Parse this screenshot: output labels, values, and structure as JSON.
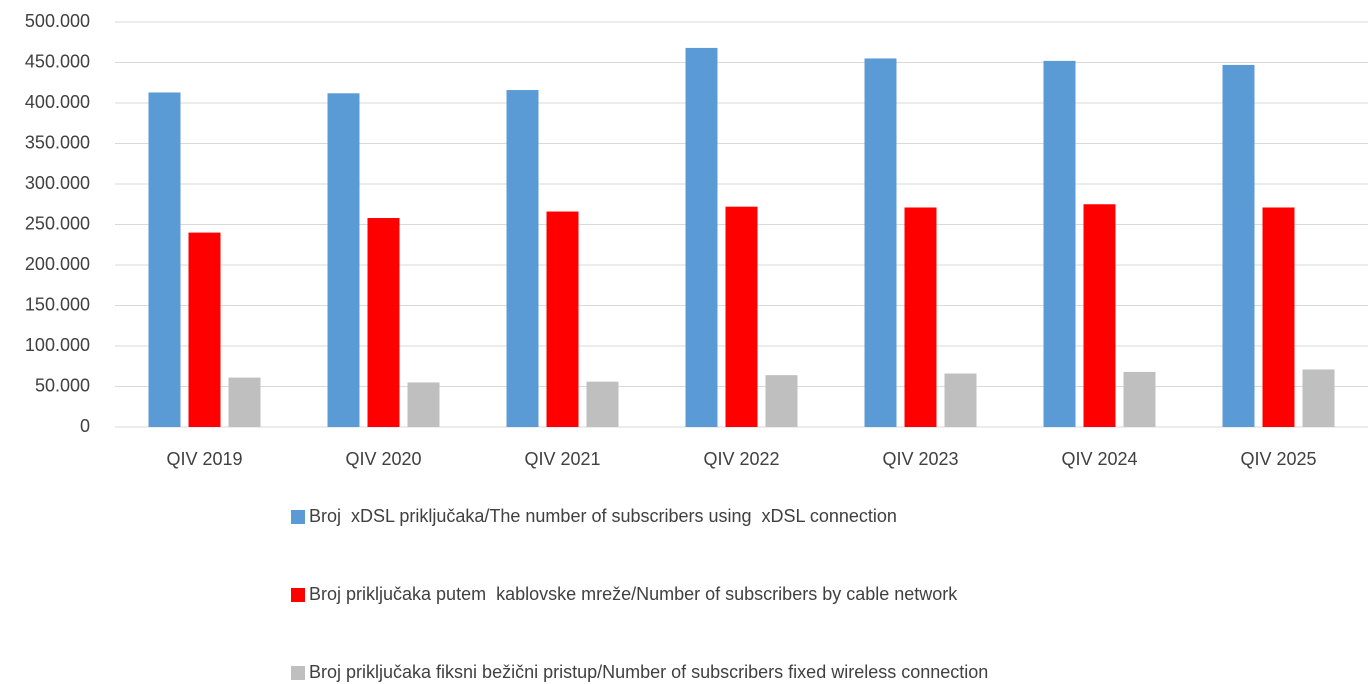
{
  "chart_data": {
    "type": "bar",
    "categories": [
      "QIV 2019",
      "QIV 2020",
      "QIV 2021",
      "QIV 2022",
      "QIV 2023",
      "QIV 2024",
      "QIV 2025"
    ],
    "series": [
      {
        "name": "Broj  xDSL priključaka/The number of subscribers using  xDSL connection",
        "color": "#5b9bd5",
        "values": [
          413000,
          412000,
          416000,
          468000,
          455000,
          452000,
          447000
        ]
      },
      {
        "name": "Broj priključaka putem  kablovske mreže/Number of subscribers by cable network",
        "color": "#ff0000",
        "values": [
          240000,
          258000,
          266000,
          272000,
          271000,
          275000,
          271000
        ]
      },
      {
        "name": "Broj priključaka fiksni bežični pristup/Number of subscribers fixed wireless connection",
        "color": "#bfbfbf",
        "values": [
          61000,
          55000,
          56000,
          64000,
          66000,
          68000,
          71000
        ]
      }
    ],
    "ylim": [
      0,
      500000
    ],
    "yticks": [
      0,
      {
        "value": 50000,
        "label": "50.000"
      },
      {
        "value": 100000,
        "label": "100.000"
      },
      {
        "value": 150000,
        "label": "150.000"
      },
      {
        "value": 200000,
        "label": "200.000"
      },
      {
        "value": 250000,
        "label": "250.000"
      },
      {
        "value": 300000,
        "label": "300.000"
      },
      {
        "value": 350000,
        "label": "350.000"
      },
      {
        "value": 400000,
        "label": "400.000"
      },
      {
        "value": 450000,
        "label": "450.000"
      },
      {
        "value": 500000,
        "label": "500.000"
      }
    ],
    "grid": true,
    "legend": "bottom"
  }
}
